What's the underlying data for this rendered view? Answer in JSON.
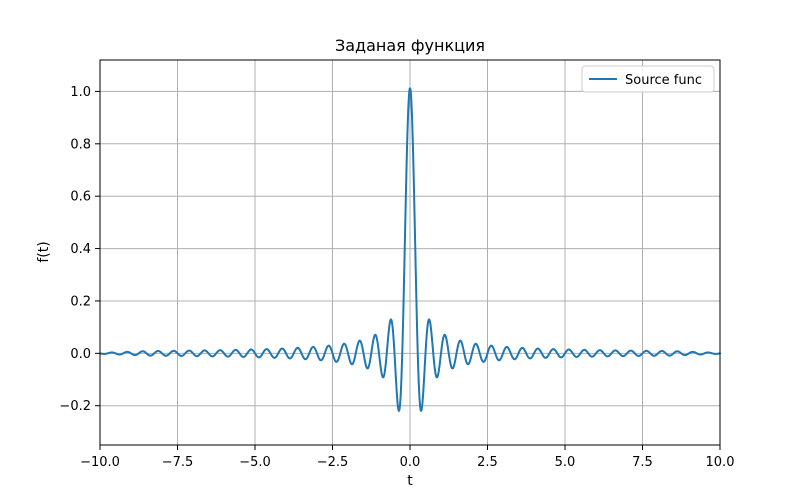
{
  "chart_data": {
    "type": "line",
    "title": "Заданая функция",
    "xlabel": "t",
    "ylabel": "f(t)",
    "xlim": [
      -10,
      10
    ],
    "ylim": [
      -0.35,
      1.12
    ],
    "x_ticks": [
      -10.0,
      -7.5,
      -5.0,
      -2.5,
      0.0,
      2.5,
      5.0,
      7.5,
      10.0
    ],
    "x_tick_labels": [
      "−10.0",
      "−7.5",
      "−5.0",
      "−2.5",
      "0.0",
      "2.5",
      "5.0",
      "7.5",
      "10.0"
    ],
    "y_ticks": [
      -0.2,
      0.0,
      0.2,
      0.4,
      0.6,
      0.8,
      1.0
    ],
    "y_tick_labels": [
      "−0.2",
      "0.0",
      "0.2",
      "0.4",
      "0.6",
      "0.8",
      "1.0"
    ],
    "grid": true,
    "legend_position": "top-right",
    "series": [
      {
        "name": "Source func",
        "color": "#1f77b4",
        "x": [
          -10.0,
          -9.0,
          -8.0,
          -7.0,
          -6.0,
          -5.0,
          -4.0,
          -3.0,
          -2.5,
          -2.0,
          -1.5,
          -1.0,
          -0.75,
          -0.5,
          -0.35,
          -0.25,
          -0.125,
          0.0,
          0.125,
          0.25,
          0.35,
          0.5,
          0.75,
          1.0,
          1.5,
          2.0,
          2.5,
          3.0,
          4.0,
          5.0,
          6.0,
          7.0,
          8.0,
          9.0,
          10.0
        ],
        "y": [
          0.0,
          0.005,
          -0.005,
          0.007,
          -0.008,
          0.01,
          -0.012,
          0.016,
          -0.02,
          0.03,
          -0.04,
          0.07,
          -0.08,
          0.13,
          -0.2,
          -0.22,
          0.55,
          1.0,
          0.55,
          -0.22,
          -0.2,
          0.13,
          -0.08,
          0.07,
          -0.04,
          0.03,
          -0.02,
          0.016,
          -0.012,
          0.01,
          -0.008,
          0.007,
          -0.005,
          0.005,
          0.0
        ],
        "curve_model": {
          "description": "oscillating sinc-like signal",
          "main_period": 0.5,
          "peak_value": 1.0,
          "first_minimum": -0.22
        }
      }
    ]
  }
}
